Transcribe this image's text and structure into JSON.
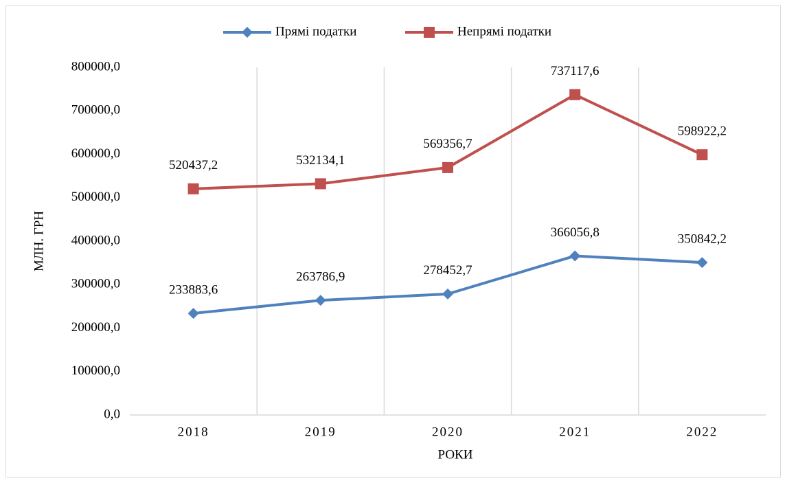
{
  "chart_data": {
    "type": "line",
    "xlabel": "РОКИ",
    "ylabel": "МЛН. ГРН",
    "categories": [
      "2018",
      "2019",
      "2020",
      "2021",
      "2022"
    ],
    "series": [
      {
        "name": "Прямі податки",
        "color": "#4f81bd",
        "marker": "diamond",
        "values": [
          233883.6,
          263786.9,
          278452.7,
          366056.8,
          350842.2
        ],
        "value_labels": [
          "233883,6",
          "263786,9",
          "278452,7",
          "366056,8",
          "350842,2"
        ]
      },
      {
        "name": "Непрямі податки",
        "color": "#c0504d",
        "marker": "square",
        "values": [
          520437.2,
          532134.1,
          569356.7,
          737117.6,
          598922.2
        ],
        "value_labels": [
          "520437,2",
          "532134,1",
          "569356,7",
          "737117,6",
          "598922,2"
        ]
      }
    ],
    "ylim": [
      0,
      800000
    ],
    "yticks": [
      {
        "value": 0,
        "label": "0,0"
      },
      {
        "value": 100000,
        "label": "100000,0"
      },
      {
        "value": 200000,
        "label": "200000,0"
      },
      {
        "value": 300000,
        "label": "300000,0"
      },
      {
        "value": 400000,
        "label": "400000,0"
      },
      {
        "value": 500000,
        "label": "500000,0"
      },
      {
        "value": 600000,
        "label": "600000,0"
      },
      {
        "value": 700000,
        "label": "700000,0"
      },
      {
        "value": 800000,
        "label": "800000,0"
      }
    ],
    "legend": "top"
  }
}
